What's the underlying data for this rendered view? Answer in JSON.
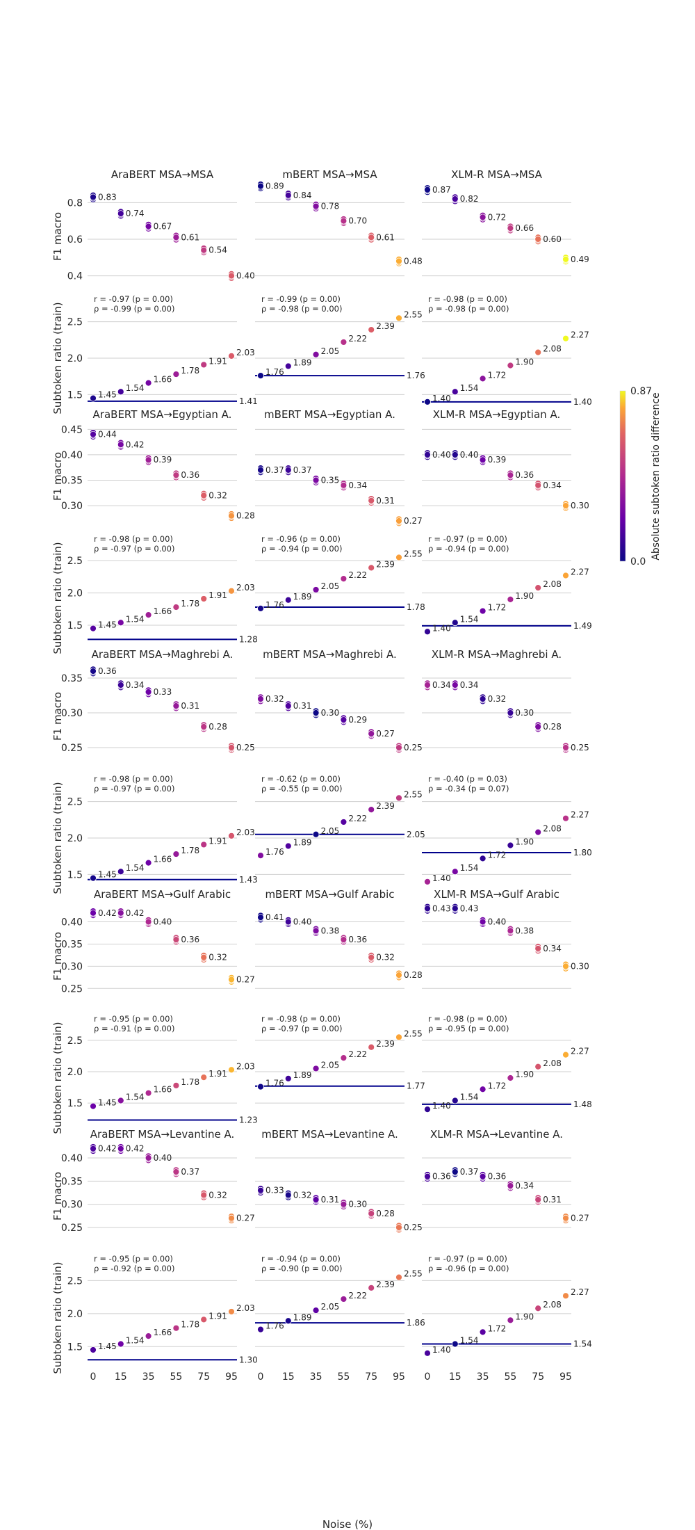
{
  "figure": {
    "xlabel": "Noise (%)",
    "colorbar": {
      "label": "Absolute subtoken ratio difference",
      "min_label": "0.0",
      "max_label": "0.87",
      "min": 0.0,
      "max": 0.87
    },
    "row_labels": {
      "f1": "F1 macro",
      "ratio": "Subtoken ratio (train)"
    },
    "noise_ticks": [
      "0",
      "15",
      "35",
      "55",
      "75",
      "95"
    ]
  },
  "chart_data": {
    "type": "scatter",
    "x": [
      0,
      15,
      35,
      55,
      75,
      95
    ],
    "colormap": "plasma",
    "models": [
      "AraBERT",
      "mBERT",
      "XLM-R"
    ],
    "train_ratio": {
      "AraBERT": [
        1.45,
        1.54,
        1.66,
        1.78,
        1.91,
        2.03
      ],
      "mBERT": [
        1.76,
        1.89,
        2.05,
        2.22,
        2.39,
        2.55
      ],
      "XLM-R": [
        1.4,
        1.54,
        1.72,
        1.9,
        2.08,
        2.27
      ]
    },
    "rows": [
      {
        "target": "MSA",
        "f1_ylim": [
          0.33,
          0.9
        ],
        "f1_ticks": [
          "0.4",
          "0.6",
          "0.8"
        ],
        "f1_tickvals": [
          0.4,
          0.6,
          0.8
        ],
        "ratio_ylim": [
          1.38,
          2.62
        ],
        "ratio_ticks": [
          "1.5",
          "2.0",
          "2.5"
        ],
        "ratio_tickvals": [
          1.5,
          2.0,
          2.5
        ],
        "panels": [
          {
            "title": "AraBERT MSA→MSA",
            "model": "AraBERT",
            "f1_mean": [
              0.83,
              0.74,
              0.67,
              0.61,
              0.54,
              0.4
            ],
            "f1_labels": [
              "0.83",
              "0.74",
              "0.67",
              "0.61",
              "0.54",
              "0.40"
            ],
            "test_ratio": 1.41,
            "test_ratio_label": "1.41",
            "r": "r = -0.97 (p = 0.00)",
            "rho": "ρ = -0.99 (p = 0.00)"
          },
          {
            "title": "mBERT MSA→MSA",
            "model": "mBERT",
            "f1_mean": [
              0.89,
              0.84,
              0.78,
              0.7,
              0.61,
              0.48
            ],
            "f1_labels": [
              "0.89",
              "0.84",
              "0.78",
              "0.70",
              "0.61",
              "0.48"
            ],
            "test_ratio": 1.76,
            "test_ratio_label": "1.76",
            "r": "r = -0.99 (p = 0.00)",
            "rho": "ρ = -0.98 (p = 0.00)"
          },
          {
            "title": "XLM-R MSA→MSA",
            "model": "XLM-R",
            "f1_mean": [
              0.87,
              0.82,
              0.72,
              0.66,
              0.6,
              0.49
            ],
            "f1_labels": [
              "0.87",
              "0.82",
              "0.72",
              "0.66",
              "0.60",
              "0.49"
            ],
            "test_ratio": 1.4,
            "test_ratio_label": "1.40",
            "r": "r = -0.98 (p = 0.00)",
            "rho": "ρ = -0.98 (p = 0.00)"
          }
        ]
      },
      {
        "target": "Egyptian A.",
        "f1_ylim": [
          0.255,
          0.46
        ],
        "f1_ticks": [
          "0.30",
          "0.35",
          "0.40",
          "0.45"
        ],
        "f1_tickvals": [
          0.3,
          0.35,
          0.4,
          0.45
        ],
        "ratio_ylim": [
          1.22,
          2.62
        ],
        "ratio_ticks": [
          "1.5",
          "2.0",
          "2.5"
        ],
        "ratio_tickvals": [
          1.5,
          2.0,
          2.5
        ],
        "panels": [
          {
            "title": "AraBERT MSA→Egyptian A.",
            "model": "AraBERT",
            "f1_mean": [
              0.44,
              0.42,
              0.39,
              0.36,
              0.32,
              0.28
            ],
            "f1_labels": [
              "0.44",
              "0.42",
              "0.39",
              "0.36",
              "0.32",
              "0.28"
            ],
            "test_ratio": 1.28,
            "test_ratio_label": "1.28",
            "r": "r = -0.98 (p = 0.00)",
            "rho": "ρ = -0.97 (p = 0.00)"
          },
          {
            "title": "mBERT MSA→Egyptian A.",
            "model": "mBERT",
            "f1_mean": [
              0.37,
              0.37,
              0.35,
              0.34,
              0.31,
              0.27
            ],
            "f1_labels": [
              "0.37",
              "0.37",
              "0.35",
              "0.34",
              "0.31",
              "0.27"
            ],
            "test_ratio": 1.78,
            "test_ratio_label": "1.78",
            "r": "r = -0.96 (p = 0.00)",
            "rho": "ρ = -0.94 (p = 0.00)"
          },
          {
            "title": "XLM-R MSA→Egyptian A.",
            "model": "XLM-R",
            "f1_mean": [
              0.4,
              0.4,
              0.39,
              0.36,
              0.34,
              0.3
            ],
            "f1_labels": [
              "0.40",
              "0.40",
              "0.39",
              "0.36",
              "0.34",
              "0.30"
            ],
            "test_ratio": 1.49,
            "test_ratio_label": "1.49",
            "r": "r = -0.97 (p = 0.00)",
            "rho": "ρ = -0.94 (p = 0.00)"
          }
        ]
      },
      {
        "target": "Maghrebi A.",
        "f1_ylim": [
          0.22,
          0.37
        ],
        "f1_ticks": [
          "0.25",
          "0.30",
          "0.35"
        ],
        "f1_tickvals": [
          0.25,
          0.3,
          0.35
        ],
        "ratio_ylim": [
          1.38,
          2.62
        ],
        "ratio_ticks": [
          "1.5",
          "2.0",
          "2.5"
        ],
        "ratio_tickvals": [
          1.5,
          2.0,
          2.5
        ],
        "panels": [
          {
            "title": "AraBERT MSA→Maghrebi A.",
            "model": "AraBERT",
            "f1_mean": [
              0.36,
              0.34,
              0.33,
              0.31,
              0.28,
              0.25
            ],
            "f1_labels": [
              "0.36",
              "0.34",
              "0.33",
              "0.31",
              "0.28",
              "0.25"
            ],
            "test_ratio": 1.43,
            "test_ratio_label": "1.43",
            "r": "r = -0.98 (p = 0.00)",
            "rho": "ρ = -0.97 (p = 0.00)"
          },
          {
            "title": "mBERT MSA→Maghrebi A.",
            "model": "mBERT",
            "f1_mean": [
              0.32,
              0.31,
              0.3,
              0.29,
              0.27,
              0.25
            ],
            "f1_labels": [
              "0.32",
              "0.31",
              "0.30",
              "0.29",
              "0.27",
              "0.25"
            ],
            "test_ratio": 2.05,
            "test_ratio_label": "2.05",
            "r": "r = -0.62 (p = 0.00)",
            "rho": "ρ = -0.55 (p = 0.00)"
          },
          {
            "title": "XLM-R MSA→Maghrebi A.",
            "model": "XLM-R",
            "f1_mean": [
              0.34,
              0.34,
              0.32,
              0.3,
              0.28,
              0.25
            ],
            "f1_labels": [
              "0.34",
              "0.34",
              "0.32",
              "0.30",
              "0.28",
              "0.25"
            ],
            "test_ratio": 1.8,
            "test_ratio_label": "1.80",
            "r": "r = -0.40 (p = 0.03)",
            "rho": "ρ = -0.34 (p = 0.07)"
          }
        ]
      },
      {
        "target": "Gulf Arabic",
        "f1_ylim": [
          0.205,
          0.44
        ],
        "f1_ticks": [
          "0.25",
          "0.30",
          "0.35",
          "0.40"
        ],
        "f1_tickvals": [
          0.25,
          0.3,
          0.35,
          0.4
        ],
        "ratio_ylim": [
          1.18,
          2.62
        ],
        "ratio_ticks": [
          "1.5",
          "2.0",
          "2.5"
        ],
        "ratio_tickvals": [
          1.5,
          2.0,
          2.5
        ],
        "panels": [
          {
            "title": "AraBERT MSA→Gulf Arabic",
            "model": "AraBERT",
            "f1_mean": [
              0.42,
              0.42,
              0.4,
              0.36,
              0.32,
              0.27
            ],
            "f1_labels": [
              "0.42",
              "0.42",
              "0.40",
              "0.36",
              "0.32",
              "0.27"
            ],
            "test_ratio": 1.23,
            "test_ratio_label": "1.23",
            "r": "r = -0.95 (p = 0.00)",
            "rho": "ρ = -0.91 (p = 0.00)"
          },
          {
            "title": "mBERT MSA→Gulf Arabic",
            "model": "mBERT",
            "f1_mean": [
              0.41,
              0.4,
              0.38,
              0.36,
              0.32,
              0.28
            ],
            "f1_labels": [
              "0.41",
              "0.40",
              "0.38",
              "0.36",
              "0.32",
              "0.28"
            ],
            "test_ratio": 1.77,
            "test_ratio_label": "1.77",
            "r": "r = -0.98 (p = 0.00)",
            "rho": "ρ = -0.97 (p = 0.00)"
          },
          {
            "title": "XLM-R MSA→Gulf Arabic",
            "model": "XLM-R",
            "f1_mean": [
              0.43,
              0.43,
              0.4,
              0.38,
              0.34,
              0.3
            ],
            "f1_labels": [
              "0.43",
              "0.43",
              "0.40",
              "0.38",
              "0.34",
              "0.30"
            ],
            "test_ratio": 1.48,
            "test_ratio_label": "1.48",
            "r": "r = -0.98 (p = 0.00)",
            "rho": "ρ = -0.95 (p = 0.00)"
          }
        ]
      },
      {
        "target": "Levantine A.",
        "f1_ylim": [
          0.205,
          0.43
        ],
        "f1_ticks": [
          "0.25",
          "0.30",
          "0.35",
          "0.40"
        ],
        "f1_tickvals": [
          0.25,
          0.3,
          0.35,
          0.4
        ],
        "ratio_ylim": [
          1.25,
          2.62
        ],
        "ratio_ticks": [
          "1.5",
          "2.0",
          "2.5"
        ],
        "ratio_tickvals": [
          1.5,
          2.0,
          2.5
        ],
        "panels": [
          {
            "title": "AraBERT MSA→Levantine A.",
            "model": "AraBERT",
            "f1_mean": [
              0.42,
              0.42,
              0.4,
              0.37,
              0.32,
              0.27
            ],
            "f1_labels": [
              "0.42",
              "0.42",
              "0.40",
              "0.37",
              "0.32",
              "0.27"
            ],
            "test_ratio": 1.3,
            "test_ratio_label": "1.30",
            "r": "r = -0.95 (p = 0.00)",
            "rho": "ρ = -0.92 (p = 0.00)"
          },
          {
            "title": "mBERT MSA→Levantine A.",
            "model": "mBERT",
            "f1_mean": [
              0.33,
              0.32,
              0.31,
              0.3,
              0.28,
              0.25
            ],
            "f1_labels": [
              "0.33",
              "0.32",
              "0.31",
              "0.30",
              "0.28",
              "0.25"
            ],
            "test_ratio": 1.86,
            "test_ratio_label": "1.86",
            "r": "r = -0.94 (p = 0.00)",
            "rho": "ρ = -0.90 (p = 0.00)"
          },
          {
            "title": "XLM-R MSA→Levantine A.",
            "model": "XLM-R",
            "f1_mean": [
              0.36,
              0.37,
              0.36,
              0.34,
              0.31,
              0.27
            ],
            "f1_labels": [
              "0.36",
              "0.37",
              "0.36",
              "0.34",
              "0.31",
              "0.27"
            ],
            "test_ratio": 1.54,
            "test_ratio_label": "1.54",
            "r": "r = -0.97 (p = 0.00)",
            "rho": "ρ = -0.96 (p = 0.00)"
          }
        ]
      }
    ]
  }
}
